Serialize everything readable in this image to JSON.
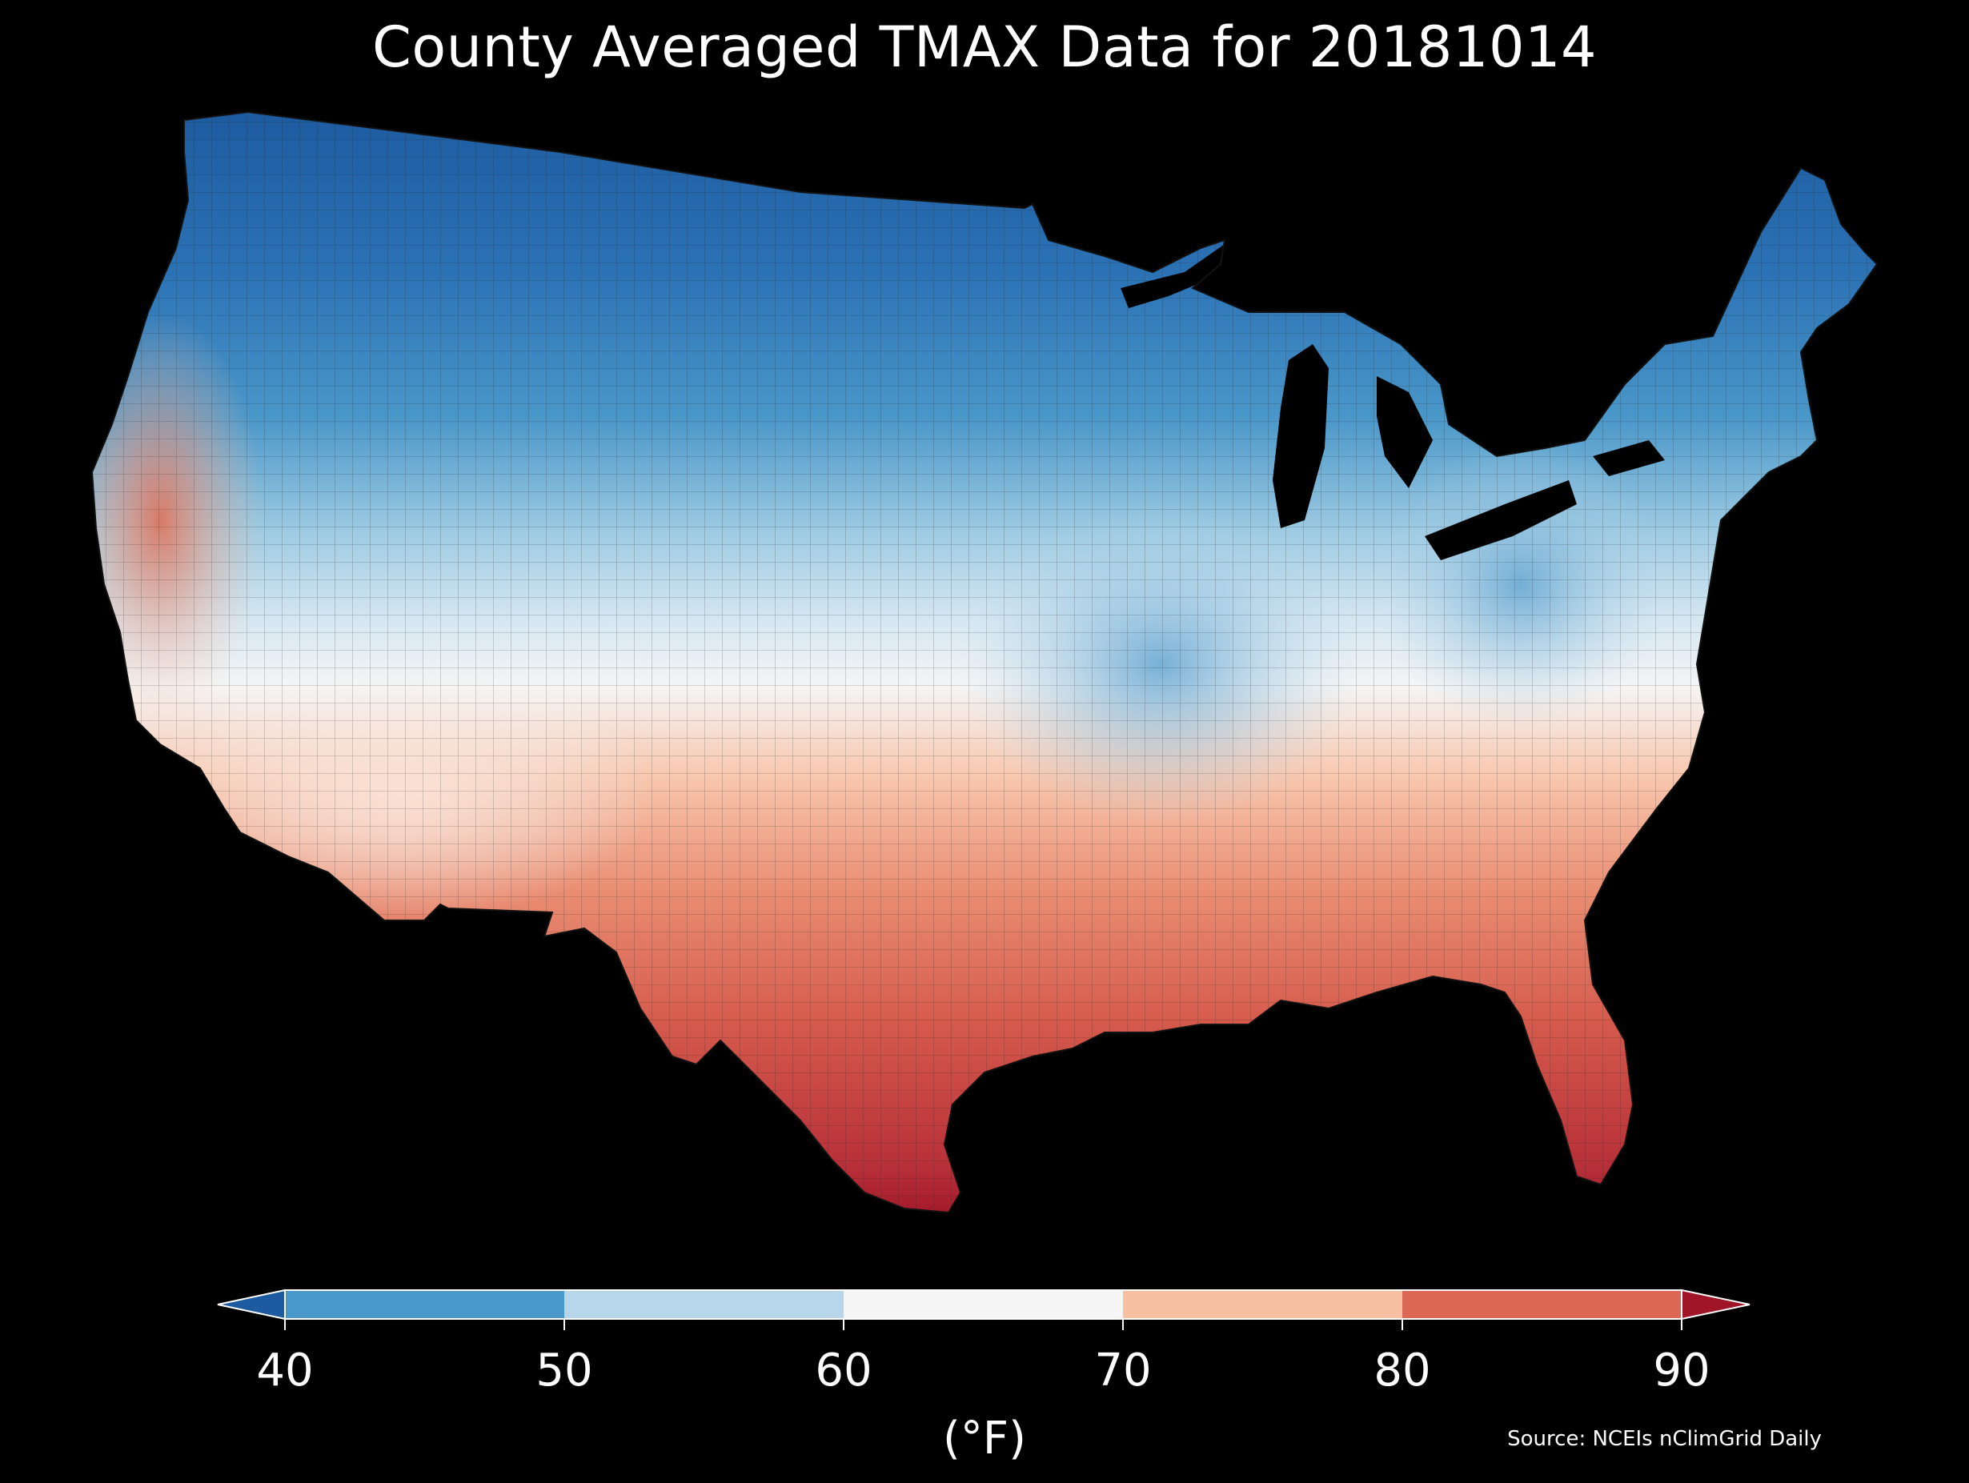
{
  "title": "County Averaged TMAX Data for 20181014",
  "colorbar": {
    "ticks": [
      "40",
      "50",
      "60",
      "70",
      "80",
      "90"
    ],
    "unit_label": "(°F)",
    "extend": "both",
    "colors": {
      "below_40": "#1d5aa0",
      "40_50": "#4a97c9",
      "50_60": "#b7d6e9",
      "60_70": "#f5f5f5",
      "70_80": "#f8c0a3",
      "80_90": "#da6855",
      "above_90": "#a01528"
    }
  },
  "source": "Source: NCEIs nClimGrid Daily",
  "map": {
    "region": "contiguous United States",
    "background": "#000000",
    "water_color": "#000000"
  }
}
